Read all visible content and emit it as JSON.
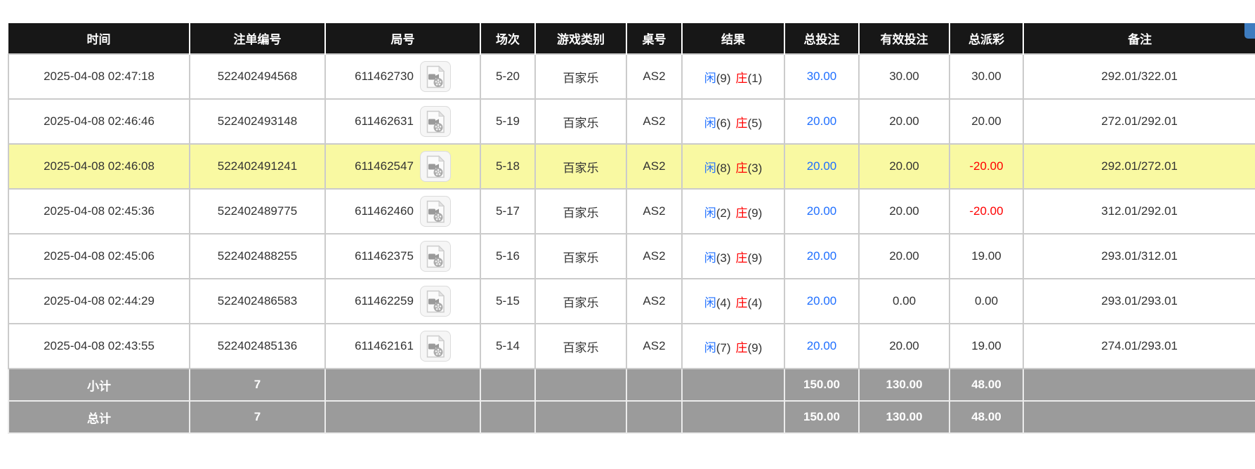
{
  "colors": {
    "accent_blue": "#1f6fff",
    "accent_red": "#ff0000",
    "highlight_yellow": "#f9f9a2",
    "header_bg": "#171717",
    "footer_gray": "#9b9b9b",
    "corner_blue": "#3e7cbf"
  },
  "table": {
    "columns": [
      {
        "key": "time",
        "label": "时间"
      },
      {
        "key": "bet_id",
        "label": "注单编号"
      },
      {
        "key": "round_id",
        "label": "局号"
      },
      {
        "key": "session",
        "label": "场次"
      },
      {
        "key": "game_type",
        "label": "游戏类别"
      },
      {
        "key": "table_id",
        "label": "桌号"
      },
      {
        "key": "result",
        "label": "结果"
      },
      {
        "key": "total_bet",
        "label": "总投注"
      },
      {
        "key": "valid_bet",
        "label": "有效投注"
      },
      {
        "key": "payout",
        "label": "总派彩"
      },
      {
        "key": "remark",
        "label": "备注"
      }
    ],
    "result_labels": {
      "player": "闲",
      "banker": "庄"
    },
    "rows": [
      {
        "time": "2025-04-08 02:47:18",
        "bet_id": "522402494568",
        "round_id": "611462730",
        "session": "5-20",
        "game_type": "百家乐",
        "table_id": "AS2",
        "player": "9",
        "banker": "1",
        "total_bet": "30.00",
        "valid_bet": "30.00",
        "payout": "30.00",
        "remark": "292.01/322.01",
        "highlighted": false
      },
      {
        "time": "2025-04-08 02:46:46",
        "bet_id": "522402493148",
        "round_id": "611462631",
        "session": "5-19",
        "game_type": "百家乐",
        "table_id": "AS2",
        "player": "6",
        "banker": "5",
        "total_bet": "20.00",
        "valid_bet": "20.00",
        "payout": "20.00",
        "remark": "272.01/292.01",
        "highlighted": false
      },
      {
        "time": "2025-04-08 02:46:08",
        "bet_id": "522402491241",
        "round_id": "611462547",
        "session": "5-18",
        "game_type": "百家乐",
        "table_id": "AS2",
        "player": "8",
        "banker": "3",
        "total_bet": "20.00",
        "valid_bet": "20.00",
        "payout": "-20.00",
        "remark": "292.01/272.01",
        "highlighted": true
      },
      {
        "time": "2025-04-08 02:45:36",
        "bet_id": "522402489775",
        "round_id": "611462460",
        "session": "5-17",
        "game_type": "百家乐",
        "table_id": "AS2",
        "player": "2",
        "banker": "9",
        "total_bet": "20.00",
        "valid_bet": "20.00",
        "payout": "-20.00",
        "remark": "312.01/292.01",
        "highlighted": false
      },
      {
        "time": "2025-04-08 02:45:06",
        "bet_id": "522402488255",
        "round_id": "611462375",
        "session": "5-16",
        "game_type": "百家乐",
        "table_id": "AS2",
        "player": "3",
        "banker": "9",
        "total_bet": "20.00",
        "valid_bet": "20.00",
        "payout": "19.00",
        "remark": "293.01/312.01",
        "highlighted": false
      },
      {
        "time": "2025-04-08 02:44:29",
        "bet_id": "522402486583",
        "round_id": "611462259",
        "session": "5-15",
        "game_type": "百家乐",
        "table_id": "AS2",
        "player": "4",
        "banker": "4",
        "total_bet": "20.00",
        "valid_bet": "0.00",
        "payout": "0.00",
        "remark": "293.01/293.01",
        "highlighted": false
      },
      {
        "time": "2025-04-08 02:43:55",
        "bet_id": "522402485136",
        "round_id": "611462161",
        "session": "5-14",
        "game_type": "百家乐",
        "table_id": "AS2",
        "player": "7",
        "banker": "9",
        "total_bet": "20.00",
        "valid_bet": "20.00",
        "payout": "19.00",
        "remark": "274.01/293.01",
        "highlighted": false
      }
    ],
    "footer": [
      {
        "label": "小计",
        "count": "7",
        "total_bet": "150.00",
        "valid_bet": "130.00",
        "payout": "48.00"
      },
      {
        "label": "总计",
        "count": "7",
        "total_bet": "150.00",
        "valid_bet": "130.00",
        "payout": "48.00"
      }
    ]
  }
}
